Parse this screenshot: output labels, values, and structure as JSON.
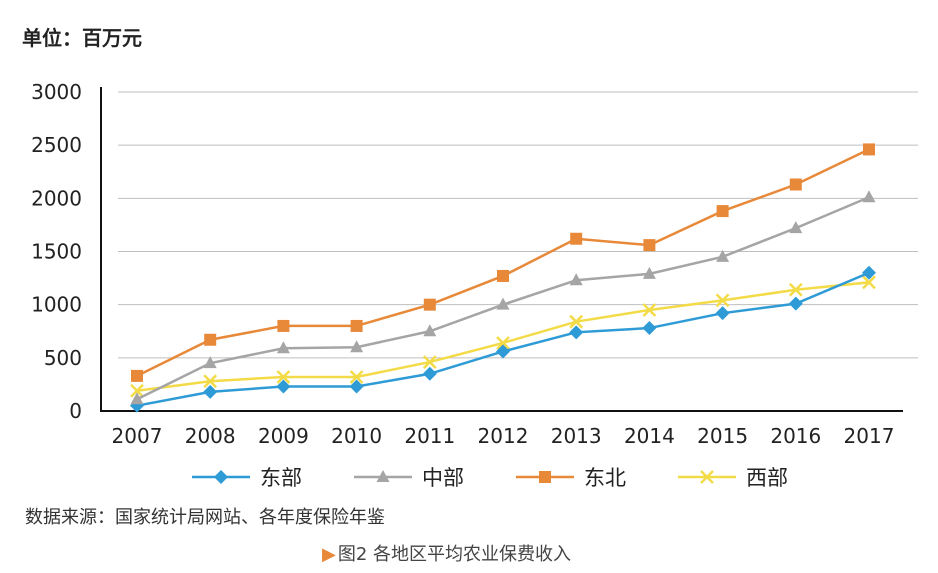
{
  "unit_label": "单位：百万元",
  "source_note": "数据来源：国家统计局网站、各年度保险年鉴",
  "figure_caption": "图2 各地区平均农业保费收入",
  "caption_marker": "▶",
  "chart_data": {
    "type": "line",
    "categories": [
      "2007",
      "2008",
      "2009",
      "2010",
      "2011",
      "2012",
      "2013",
      "2014",
      "2015",
      "2016",
      "2017"
    ],
    "ylim": [
      0,
      3000
    ],
    "yticks": [
      0,
      500,
      1000,
      1500,
      2000,
      2500,
      3000
    ],
    "grid": true,
    "legend_position": "bottom",
    "series": [
      {
        "name": "东部",
        "color": "#2E9BD6",
        "marker": "diamond",
        "values": [
          50,
          180,
          230,
          230,
          350,
          560,
          740,
          780,
          920,
          1010,
          1300
        ]
      },
      {
        "name": "中部",
        "color": "#A5A5A5",
        "marker": "triangle",
        "values": [
          110,
          450,
          590,
          600,
          750,
          1000,
          1230,
          1290,
          1450,
          1720,
          2010
        ]
      },
      {
        "name": "东北",
        "color": "#E8893A",
        "marker": "square",
        "values": [
          330,
          670,
          800,
          800,
          1000,
          1270,
          1620,
          1560,
          1880,
          2130,
          2460
        ]
      },
      {
        "name": "西部",
        "color": "#F3DB48",
        "marker": "x",
        "values": [
          190,
          280,
          320,
          320,
          460,
          640,
          840,
          950,
          1040,
          1140,
          1210
        ]
      }
    ]
  }
}
